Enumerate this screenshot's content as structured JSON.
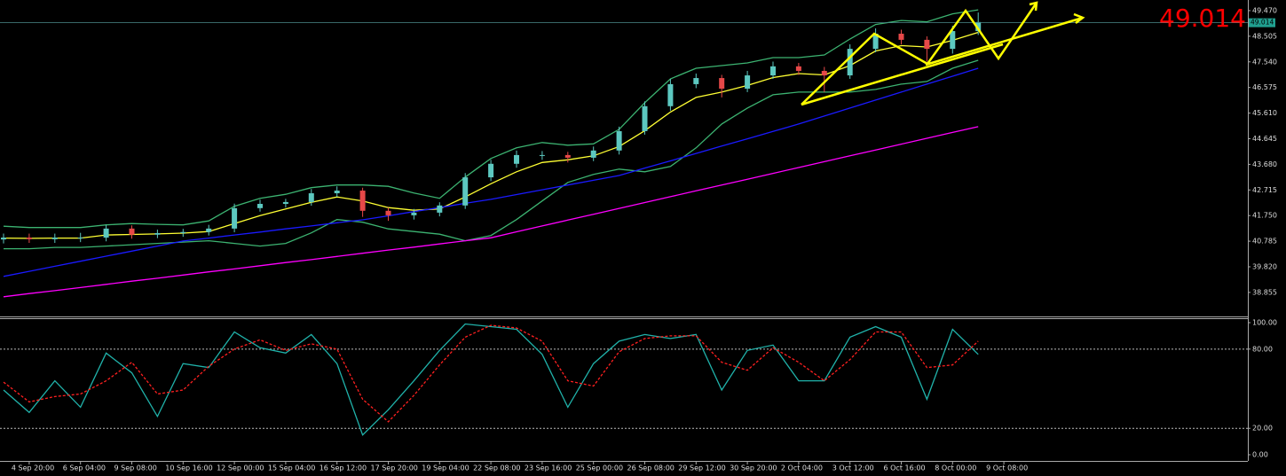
{
  "chart_data": [
    {
      "type": "candlestick",
      "categories": [
        null,
        "4 Sep 20:00",
        null,
        "6 Sep 04:00",
        null,
        "9 Sep 08:00",
        null,
        "10 Sep 16:00",
        null,
        "12 Sep 00:00",
        null,
        "15 Sep 04:00",
        null,
        "16 Sep 12:00",
        null,
        "17 Sep 20:00",
        null,
        "19 Sep 04:00",
        null,
        "22 Sep 08:00",
        null,
        "23 Sep 16:00",
        null,
        "25 Sep 00:00",
        null,
        "26 Sep 08:00",
        null,
        "29 Sep 12:00",
        null,
        "30 Sep 20:00",
        null,
        "2 Oct 04:00",
        null,
        "3 Oct 12:00",
        null,
        "6 Oct 16:00",
        null,
        "8 Oct 00:00",
        null,
        "9 Oct 08:00"
      ],
      "open": [
        40.85,
        40.92,
        40.86,
        40.92,
        40.92,
        41.26,
        41.03,
        41.09,
        41.13,
        41.26,
        42.03,
        42.19,
        42.26,
        42.59,
        42.69,
        41.93,
        41.76,
        41.86,
        42.13,
        43.19,
        43.7,
        44.03,
        44.03,
        43.93,
        44.2,
        44.93,
        45.87,
        46.7,
        46.93,
        46.53,
        47.03,
        47.37,
        47.2,
        47.03,
        48.03,
        48.6,
        48.37,
        48.03,
        48.7,
        null
      ],
      "high": [
        41.07,
        41.07,
        41.07,
        41.1,
        41.4,
        41.38,
        41.22,
        41.25,
        41.4,
        42.2,
        42.35,
        42.38,
        42.75,
        42.85,
        42.8,
        42.05,
        42.0,
        42.25,
        43.35,
        43.85,
        44.2,
        44.18,
        44.15,
        44.35,
        45.1,
        46.05,
        46.9,
        47.1,
        47.05,
        47.2,
        47.55,
        47.5,
        47.35,
        48.2,
        48.8,
        48.75,
        48.5,
        48.9,
        49.4,
        null
      ],
      "low": [
        40.7,
        40.72,
        40.72,
        40.75,
        40.78,
        40.88,
        40.9,
        40.95,
        41.0,
        41.12,
        41.9,
        42.05,
        42.12,
        42.45,
        41.7,
        41.55,
        41.6,
        41.72,
        42.0,
        43.05,
        43.55,
        43.85,
        43.75,
        43.8,
        44.05,
        44.8,
        45.7,
        46.55,
        46.2,
        46.4,
        46.9,
        47.05,
        46.4,
        46.9,
        47.9,
        48.2,
        47.55,
        47.85,
        48.55,
        null
      ],
      "close": [
        40.92,
        40.86,
        40.92,
        40.92,
        41.26,
        41.03,
        41.09,
        41.13,
        41.26,
        42.03,
        42.19,
        42.26,
        42.59,
        42.69,
        41.93,
        41.76,
        41.86,
        42.13,
        43.19,
        43.7,
        44.03,
        44.03,
        43.93,
        44.2,
        44.93,
        45.87,
        46.7,
        46.93,
        46.53,
        47.03,
        47.37,
        47.2,
        47.03,
        48.03,
        48.6,
        48.37,
        48.03,
        48.7,
        49.04,
        null
      ],
      "up_color": "#5cc8c0",
      "down_color": "#e64848",
      "series": [
        {
          "color": "#3cb371",
          "values": [
            41.35,
            41.3,
            41.3,
            41.3,
            41.4,
            41.45,
            41.42,
            41.4,
            41.55,
            42.1,
            42.4,
            42.55,
            42.8,
            42.9,
            42.9,
            42.85,
            42.6,
            42.4,
            43.2,
            43.9,
            44.3,
            44.5,
            44.4,
            44.45,
            45.0,
            46.0,
            46.9,
            47.3,
            47.4,
            47.5,
            47.7,
            47.7,
            47.8,
            48.4,
            48.95,
            49.1,
            49.05,
            49.35,
            49.5,
            null
          ]
        },
        {
          "color": "#3cb371",
          "values": [
            40.5,
            40.5,
            40.55,
            40.55,
            40.6,
            40.65,
            40.7,
            40.75,
            40.8,
            40.7,
            40.6,
            40.7,
            41.1,
            41.6,
            41.5,
            41.25,
            41.15,
            41.05,
            40.8,
            41.0,
            41.6,
            42.3,
            43.0,
            43.3,
            43.5,
            43.4,
            43.6,
            44.3,
            45.2,
            45.8,
            46.3,
            46.4,
            46.4,
            46.4,
            46.5,
            46.7,
            46.8,
            47.3,
            47.6,
            null
          ]
        },
        {
          "color": "#ffff33",
          "values": [
            40.9,
            40.89,
            40.9,
            40.9,
            41.02,
            41.04,
            41.06,
            41.09,
            41.15,
            41.45,
            41.75,
            42.0,
            42.25,
            42.45,
            42.3,
            42.05,
            41.95,
            42.0,
            42.45,
            42.95,
            43.4,
            43.75,
            43.85,
            44.0,
            44.35,
            44.95,
            45.65,
            46.2,
            46.4,
            46.65,
            46.95,
            47.1,
            47.05,
            47.4,
            47.95,
            48.15,
            48.1,
            48.35,
            48.65,
            null
          ]
        },
        {
          "color": "#1a1aff",
          "values": [
            39.46,
            39.65,
            39.84,
            40.03,
            40.22,
            40.41,
            40.6,
            40.79,
            40.9,
            41.02,
            41.13,
            41.25,
            41.36,
            41.48,
            41.59,
            41.74,
            41.9,
            42.05,
            42.21,
            42.36,
            42.54,
            42.72,
            42.9,
            43.08,
            43.26,
            43.54,
            43.81,
            44.09,
            44.37,
            44.64,
            44.92,
            45.2,
            45.5,
            45.8,
            46.1,
            46.4,
            46.7,
            47.0,
            47.3,
            null
          ]
        },
        {
          "color": "#ff00ff",
          "values": [
            38.69,
            38.81,
            38.92,
            39.04,
            39.16,
            39.28,
            39.39,
            39.51,
            39.63,
            39.74,
            39.86,
            39.98,
            40.09,
            40.21,
            40.33,
            40.45,
            40.56,
            40.68,
            40.8,
            40.91,
            41.14,
            41.36,
            41.58,
            41.8,
            42.02,
            42.24,
            42.46,
            42.68,
            42.9,
            43.12,
            43.34,
            43.56,
            43.78,
            44.0,
            44.22,
            44.44,
            44.66,
            44.88,
            45.1,
            null
          ]
        }
      ],
      "last_price": 49.014,
      "ylim": [
        37.95,
        49.87
      ],
      "yticks": [
        {
          "value": 49.47,
          "label": "49.470"
        },
        48.505,
        {
          "value": 47.54,
          "label": "47.540"
        },
        46.575,
        {
          "value": 45.61,
          "label": "45.610"
        },
        44.645,
        {
          "value": 43.68,
          "label": "43.680"
        },
        42.715,
        {
          "value": 41.75,
          "label": "41.750"
        },
        40.785,
        {
          "value": 39.82,
          "label": "39.820"
        },
        38.855
      ]
    },
    {
      "type": "line",
      "series": [
        {
          "color": "#20b2aa",
          "dash": false,
          "values": [
            49,
            32,
            56,
            36,
            77,
            62,
            29,
            69,
            66,
            93,
            81,
            77,
            91,
            69,
            15,
            34,
            56,
            79,
            99,
            97,
            95,
            76,
            36,
            69,
            86,
            91,
            88,
            91,
            49,
            79,
            83,
            56,
            56,
            89,
            97,
            89,
            42,
            95,
            76,
            null
          ]
        },
        {
          "color": "#ff2020",
          "dash": true,
          "values": [
            55,
            40,
            44,
            46,
            56,
            70,
            46,
            49,
            67,
            80,
            87,
            79,
            84,
            80,
            42,
            25,
            45,
            68,
            89,
            98,
            96,
            86,
            56,
            52,
            78,
            88,
            90,
            90,
            70,
            64,
            81,
            70,
            56,
            72,
            93,
            93,
            66,
            68,
            86,
            null
          ]
        }
      ],
      "levels": [
        80,
        20
      ],
      "ylim": [
        -4.7,
        102.7
      ],
      "yticks": [
        {
          "value": 100,
          "label": "100.00"
        },
        {
          "value": 80,
          "label": "80.00"
        },
        {
          "value": 20,
          "label": "20.00"
        },
        {
          "value": 0,
          "label": "0.00"
        }
      ]
    }
  ]
}
